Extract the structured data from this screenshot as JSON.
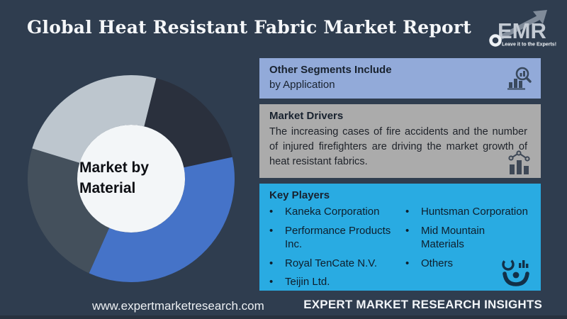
{
  "header": {
    "title": "Global Heat Resistant Fabric Market Report",
    "logo": {
      "text": "EMR",
      "tagline": "Leave it to the Experts!"
    }
  },
  "chart_data": {
    "type": "pie",
    "subtype": "donut",
    "title": "Market by Material",
    "center_label": "Market by\nMaterial",
    "hole_color": "#F3F6F8",
    "legend": "none",
    "segments": [
      {
        "name": "segment-dark-navy",
        "color": "#2A303D",
        "start_deg": 14,
        "end_deg": 78,
        "share_pct": 17.8
      },
      {
        "name": "segment-blue",
        "color": "#4573C8",
        "start_deg": 78,
        "end_deg": 204,
        "share_pct": 35.0
      },
      {
        "name": "segment-dark-slate",
        "color": "#44505C",
        "start_deg": 204,
        "end_deg": 287,
        "share_pct": 23.1
      },
      {
        "name": "segment-light-gray",
        "color": "#BDC6CE",
        "start_deg": 287,
        "end_deg": 374,
        "share_pct": 24.1
      }
    ]
  },
  "panels": {
    "other_segments": {
      "title": "Other Segments Include",
      "item": "by Application",
      "bg": "#92AAD9",
      "icon": "bar-chart-magnifier-icon"
    },
    "market_drivers": {
      "title": "Market Drivers",
      "body": "The increasing cases of fire accidents and the number of injured firefighters are driving the market growth of heat resistant fabrics.",
      "bg": "#ABABAB",
      "icon": "growth-chart-icon"
    },
    "key_players": {
      "title": "Key Players",
      "columns": [
        [
          "Kaneka Corporation",
          "Performance Products Inc.",
          "Royal TenCate N.V.",
          "Teijin Ltd."
        ],
        [
          "Huntsman Corporation",
          "Mid Mountain Materials",
          "Others"
        ]
      ],
      "bg": "#29ABE2",
      "icon": "analyst-person-icon"
    }
  },
  "footer": {
    "website": "www.expertmarketresearch.com",
    "brand": "EXPERT MARKET RESEARCH INSIGHTS"
  },
  "colors": {
    "background": "#2F3D4F",
    "accent_cyan": "#29ABE2",
    "accent_periwinkle": "#92AAD9",
    "accent_gray": "#ABABAB",
    "title_text": "#F5F7F9"
  }
}
